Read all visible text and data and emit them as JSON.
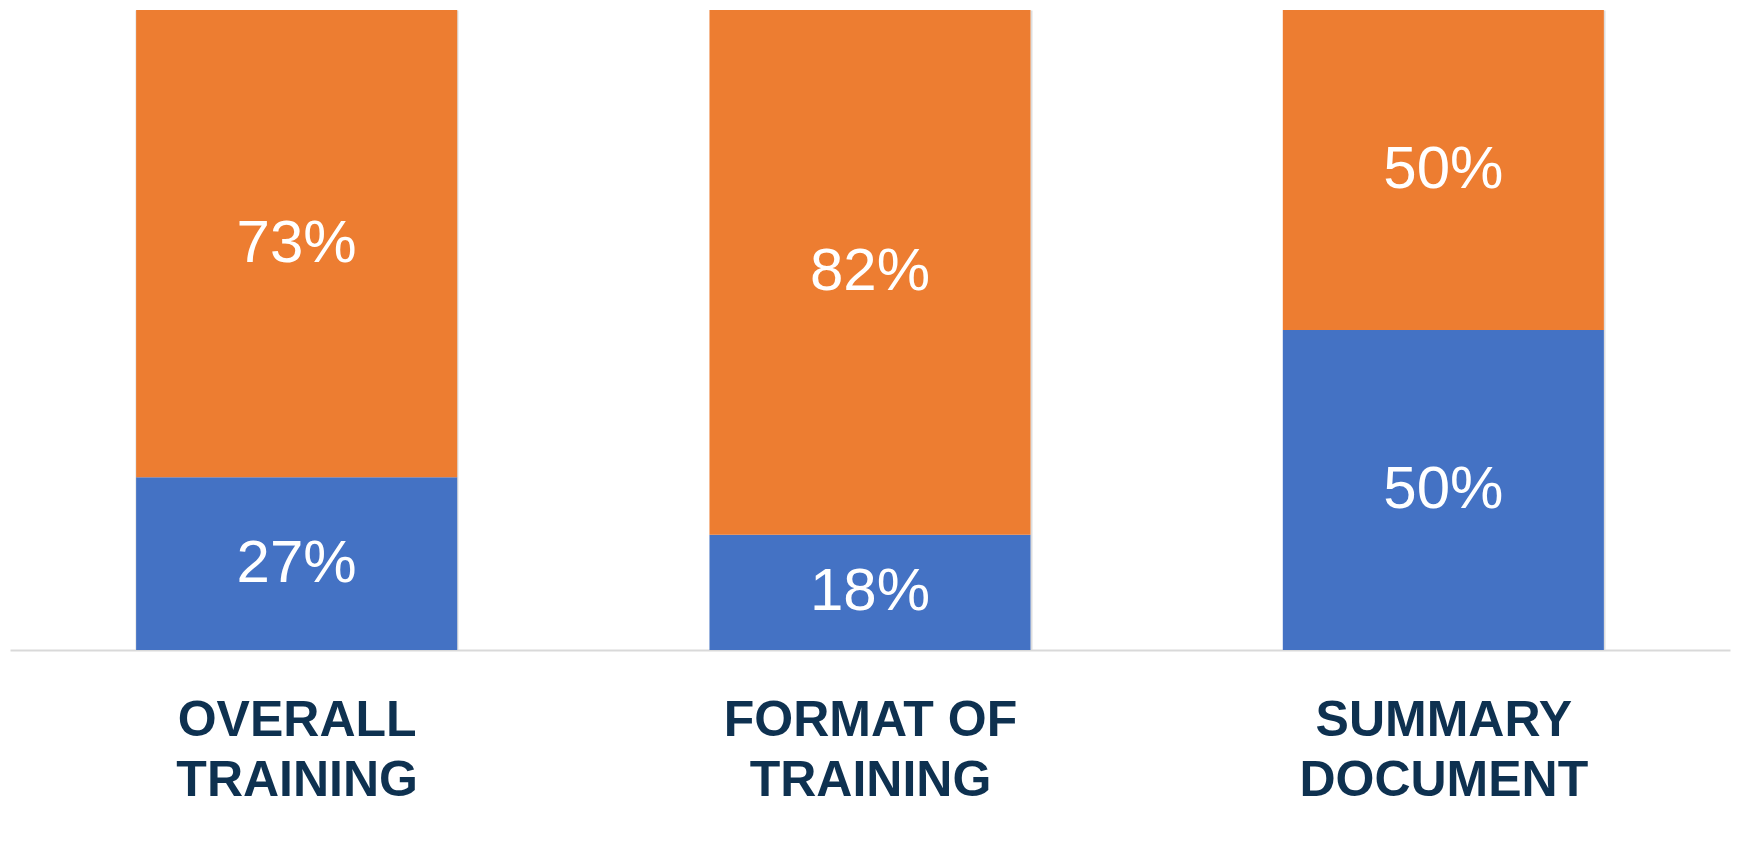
{
  "chart_data": {
    "type": "bar",
    "stacked": true,
    "categories": [
      "OVERALL TRAINING",
      "FORMAT OF TRAINING",
      "SUMMARY DOCUMENT"
    ],
    "series": [
      {
        "color": "#4472c4",
        "values": [
          27,
          18,
          50
        ],
        "value_labels": [
          "27%",
          "18%",
          "50%"
        ]
      },
      {
        "color": "#ed7d31",
        "values": [
          73,
          82,
          50
        ],
        "value_labels": [
          "73%",
          "82%",
          "50%"
        ]
      }
    ],
    "ylim": [
      0,
      100
    ],
    "tick_labels": "x",
    "grid": "x"
  }
}
